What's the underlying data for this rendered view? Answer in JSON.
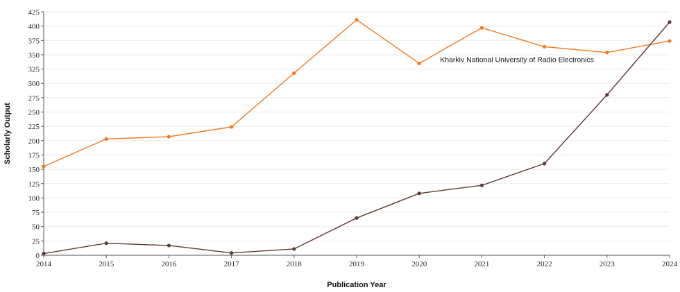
{
  "chart_data": {
    "type": "line",
    "xlabel": "Publication Year",
    "ylabel": "Scholarly Output",
    "ylim": [
      0,
      425
    ],
    "yticks": [
      0,
      25,
      50,
      75,
      100,
      125,
      150,
      175,
      200,
      225,
      250,
      275,
      300,
      325,
      350,
      375,
      400,
      425
    ],
    "x": [
      "2014",
      "2015",
      "2016",
      "2017",
      "2018",
      "2019",
      "2020",
      "2021",
      "2022",
      "2023",
      "2024"
    ],
    "grid": "horizontal",
    "series": [
      {
        "name": "Kharkiv National University of Radio Electronics",
        "color": "#f07a20",
        "values": [
          155,
          203,
          207,
          224,
          318,
          411,
          335,
          397,
          364,
          354,
          374
        ]
      },
      {
        "name": "",
        "color": "#5a3a33",
        "values": [
          3,
          21,
          17,
          4,
          11,
          65,
          108,
          122,
          160,
          280,
          407
        ]
      }
    ]
  }
}
